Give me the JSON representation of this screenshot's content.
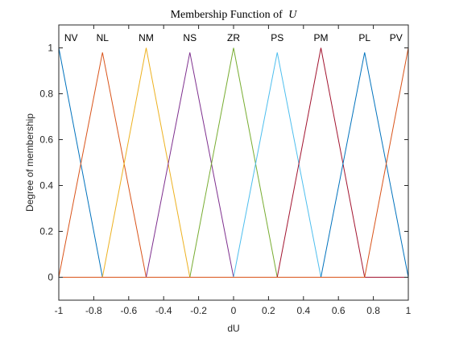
{
  "chart_data": {
    "type": "line",
    "title": "Membership Function of",
    "title_symbol": "U",
    "xlabel": "dU",
    "ylabel": "Degree of membership",
    "xlim": [
      -1,
      1
    ],
    "ylim": [
      -0.1,
      1.1
    ],
    "xticks": [
      -1,
      -0.8,
      -0.6,
      -0.4,
      -0.2,
      0,
      0.2,
      0.4,
      0.6,
      0.8,
      1
    ],
    "xtick_labels": [
      "-1",
      "-0.8",
      "-0.6",
      "-0.4",
      "-0.2",
      "0",
      "0.2",
      "0.4",
      "0.6",
      "0.8",
      "1"
    ],
    "yticks": [
      0,
      0.2,
      0.4,
      0.6,
      0.8,
      1
    ],
    "ytick_labels": [
      "0",
      "0.2",
      "0.4",
      "0.6",
      "0.8",
      "1"
    ],
    "grid": false,
    "series": [
      {
        "name": "NV",
        "color": "#0072BD",
        "x": [
          -1,
          -0.75,
          1
        ],
        "y": [
          1,
          0,
          0
        ]
      },
      {
        "name": "NL",
        "color": "#D95319",
        "x": [
          -1,
          -0.75,
          -0.5,
          1
        ],
        "y": [
          0,
          0.98,
          0,
          0
        ]
      },
      {
        "name": "NM",
        "color": "#EDB120",
        "x": [
          -1,
          -0.75,
          -0.5,
          -0.25,
          1
        ],
        "y": [
          0,
          0,
          1,
          0,
          0
        ]
      },
      {
        "name": "NS",
        "color": "#7E2F8E",
        "x": [
          -1,
          -0.5,
          -0.25,
          0,
          1
        ],
        "y": [
          0,
          0,
          0.98,
          0,
          0
        ]
      },
      {
        "name": "ZR",
        "color": "#77AC30",
        "x": [
          -1,
          -0.25,
          0,
          0.25,
          1
        ],
        "y": [
          0,
          0,
          1,
          0,
          0
        ]
      },
      {
        "name": "PS",
        "color": "#4DBEEE",
        "x": [
          -1,
          0,
          0.25,
          0.5,
          1
        ],
        "y": [
          0,
          0,
          0.98,
          0,
          0
        ]
      },
      {
        "name": "PM",
        "color": "#A2142F",
        "x": [
          -1,
          0.25,
          0.5,
          0.75,
          1
        ],
        "y": [
          0,
          0,
          1,
          0,
          0
        ]
      },
      {
        "name": "PL",
        "color": "#0072BD",
        "x": [
          -1,
          0.5,
          0.75,
          1
        ],
        "y": [
          0,
          0,
          0.98,
          0
        ]
      },
      {
        "name": "PV",
        "color": "#D95319",
        "x": [
          -1,
          0.75,
          1
        ],
        "y": [
          0,
          0,
          1
        ]
      }
    ],
    "series_label_x": [
      -0.93,
      -0.75,
      -0.5,
      -0.25,
      0,
      0.25,
      0.5,
      0.75,
      0.93
    ]
  }
}
